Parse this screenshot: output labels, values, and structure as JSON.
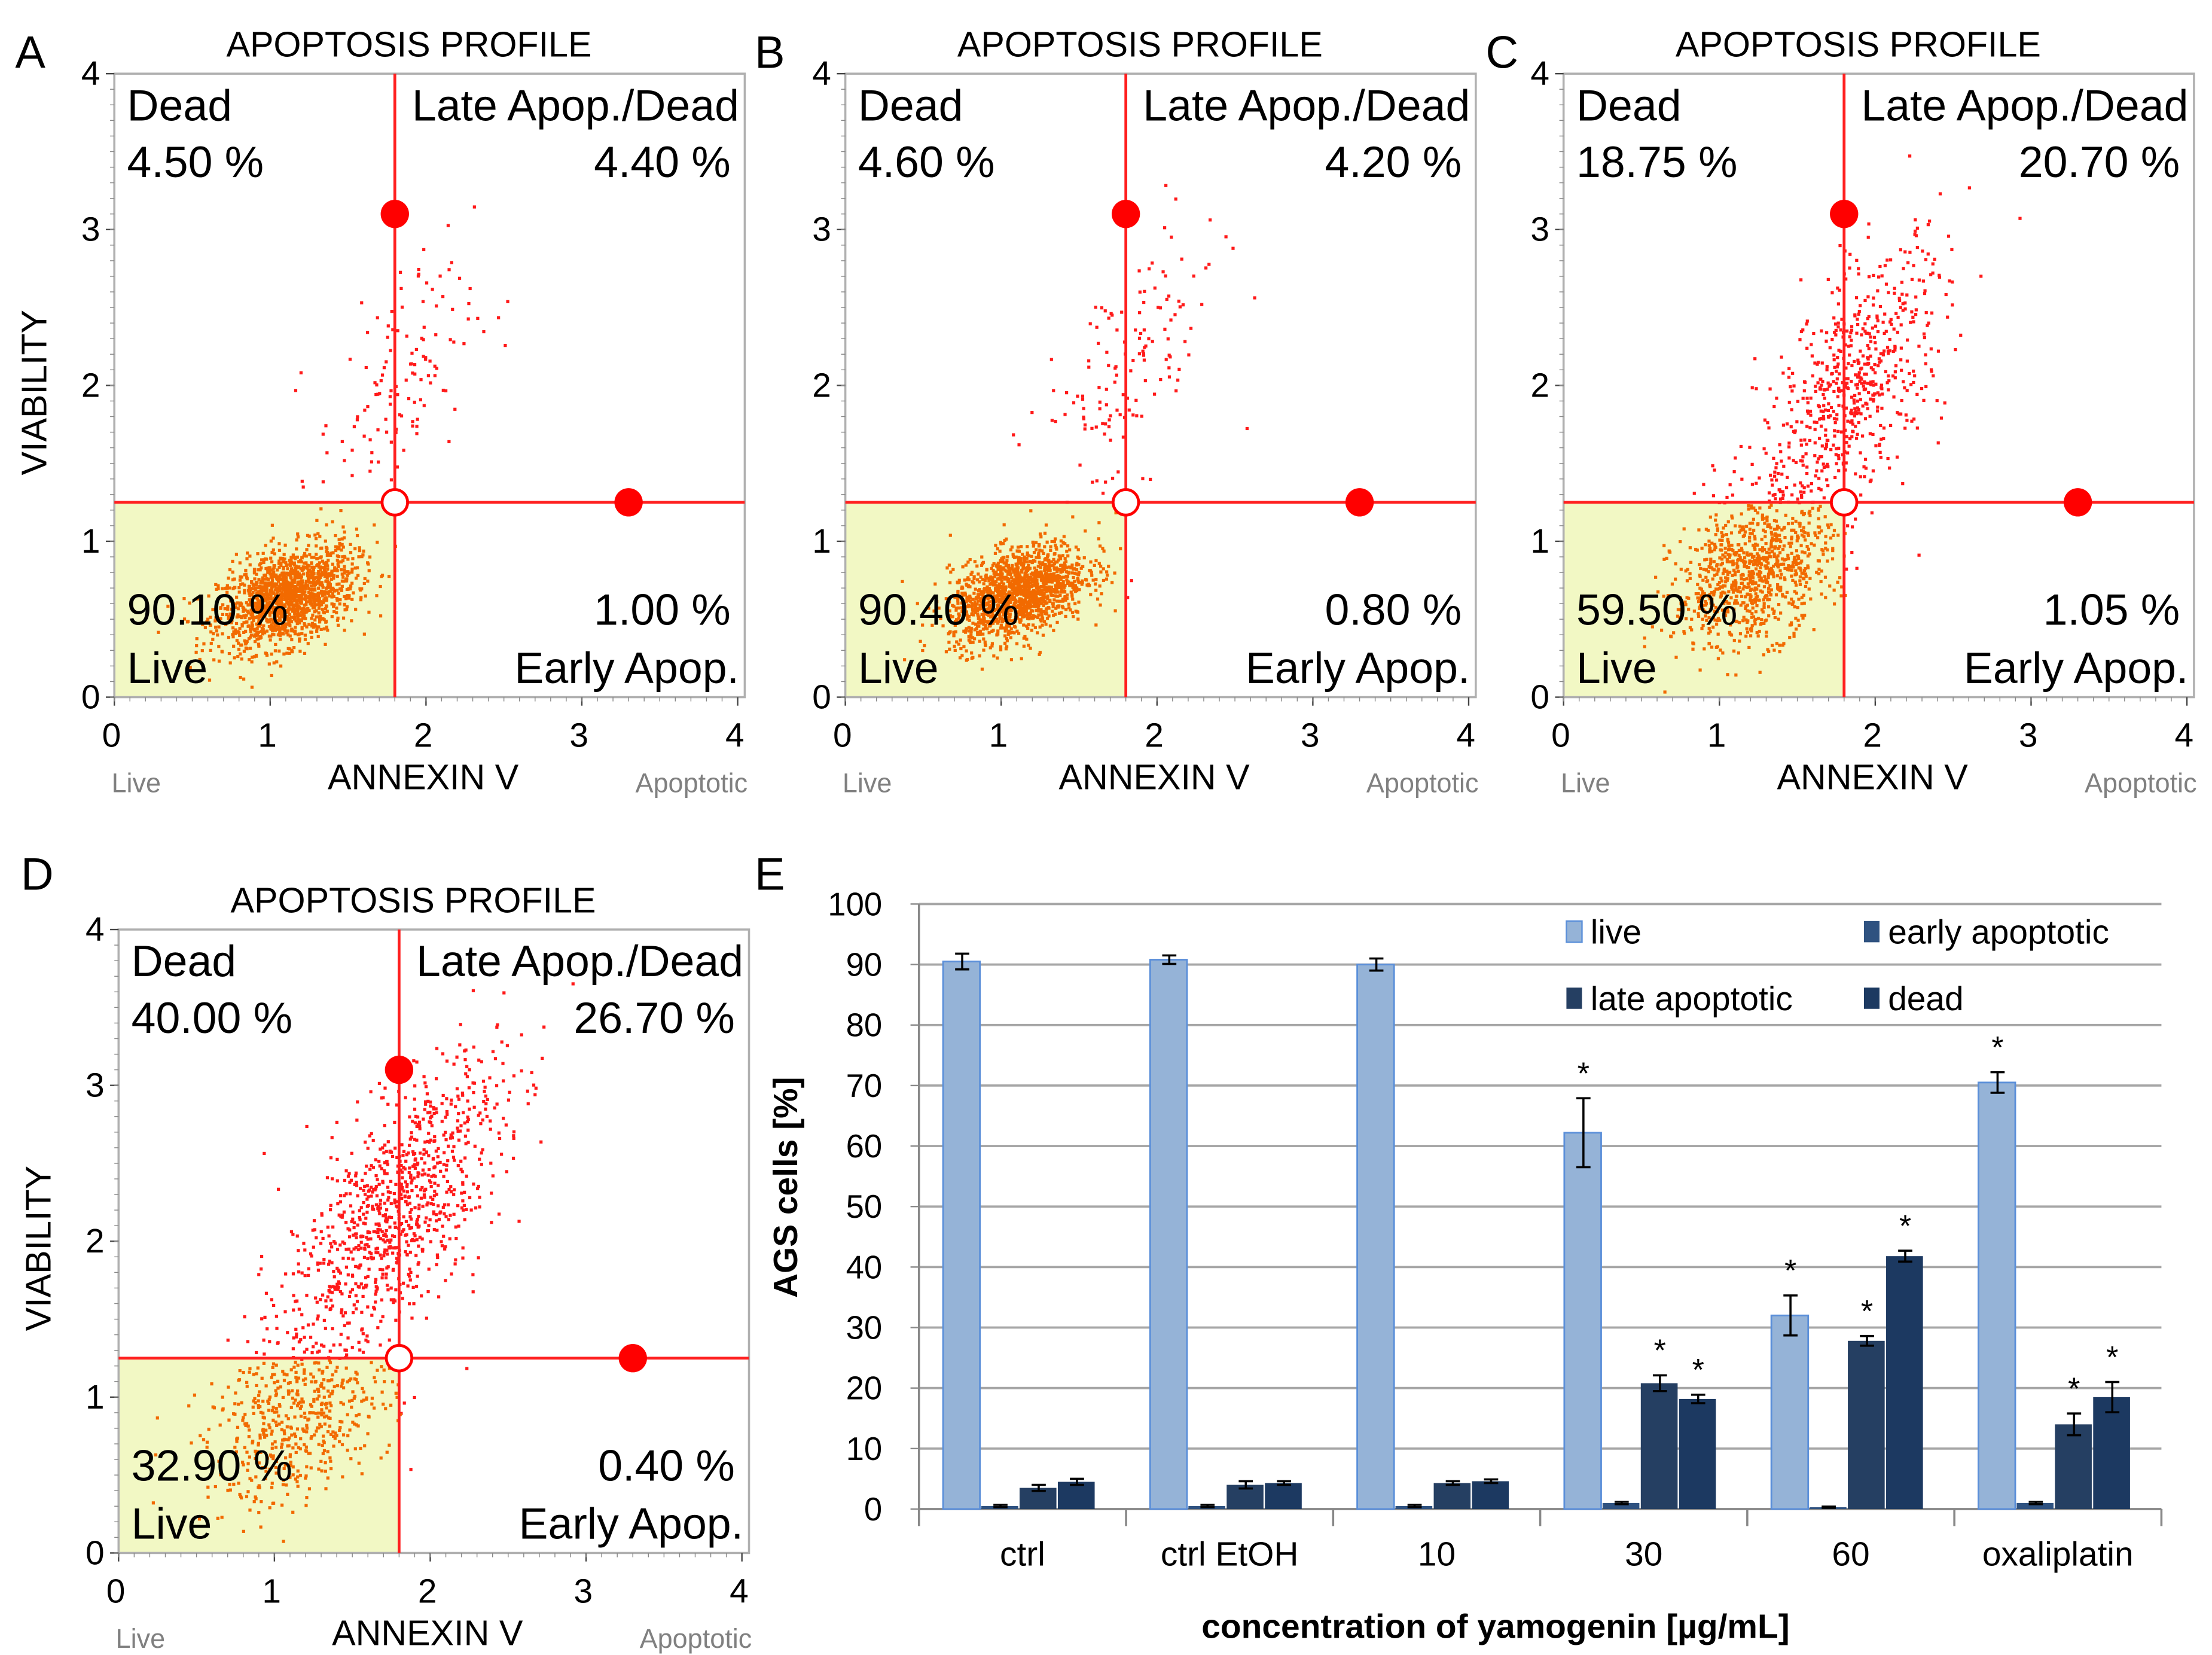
{
  "chart_data": [
    {
      "type": "scatter",
      "panel": "A",
      "title": "APOPTOSIS PROFILE",
      "xlabel": "ANNEXIN V",
      "ylabel": "VIABILITY",
      "x_left_label": "Live",
      "x_right_label": "Apoptotic",
      "xlim": [
        0,
        4
      ],
      "ylim": [
        0,
        4
      ],
      "xticks": [
        "0",
        "1",
        "2",
        "3",
        "4"
      ],
      "yticks": [
        "0",
        "1",
        "2",
        "3",
        "4"
      ],
      "gate": {
        "x": 1.8,
        "y": 1.25,
        "handle_top_y": 3.1,
        "handle_right_x": 3.3
      },
      "quadrants": {
        "dead_label": "Dead",
        "dead_pct": "4.50 %",
        "late_label": "Late Apop./Dead",
        "late_pct": "4.40 %",
        "live_label": "Live",
        "live_pct": "90.10 %",
        "early_label": "Early Apop.",
        "early_pct": "1.00 %"
      },
      "clusters": [
        {
          "cx": 1.1,
          "cy": 0.65,
          "sx": 0.22,
          "sy": 0.15,
          "n": 1500
        },
        {
          "cx": 1.8,
          "cy": 2.0,
          "sx": 0.25,
          "sy": 0.35,
          "n": 130
        }
      ],
      "show_ylabel": true
    },
    {
      "type": "scatter",
      "panel": "B",
      "title": "APOPTOSIS PROFILE",
      "xlabel": "ANNEXIN V",
      "ylabel": "VIABILITY",
      "x_left_label": "Live",
      "x_right_label": "Apoptotic",
      "xlim": [
        0,
        4
      ],
      "ylim": [
        0,
        4
      ],
      "xticks": [
        "0",
        "1",
        "2",
        "3",
        "4"
      ],
      "yticks": [
        "0",
        "1",
        "2",
        "3",
        "4"
      ],
      "gate": {
        "x": 1.8,
        "y": 1.25,
        "handle_top_y": 3.1,
        "handle_right_x": 3.3
      },
      "quadrants": {
        "dead_label": "Dead",
        "dead_pct": "4.60 %",
        "late_label": "Late Apop./Dead",
        "late_pct": "4.20 %",
        "live_label": "Live",
        "live_pct": "90.40 %",
        "early_label": "Early Apop.",
        "early_pct": "0.80 %"
      },
      "clusters": [
        {
          "cx": 1.1,
          "cy": 0.68,
          "sx": 0.22,
          "sy": 0.14,
          "n": 1500
        },
        {
          "cx": 1.8,
          "cy": 2.1,
          "sx": 0.3,
          "sy": 0.35,
          "n": 140
        }
      ],
      "show_ylabel": false
    },
    {
      "type": "scatter",
      "panel": "C",
      "title": "APOPTOSIS PROFILE",
      "xlabel": "ANNEXIN V",
      "ylabel": "VIABILITY",
      "x_left_label": "Live",
      "x_right_label": "Apoptotic",
      "xlim": [
        0,
        4
      ],
      "ylim": [
        0,
        4
      ],
      "xticks": [
        "0",
        "1",
        "2",
        "3",
        "4"
      ],
      "yticks": [
        "0",
        "1",
        "2",
        "3",
        "4"
      ],
      "gate": {
        "x": 1.8,
        "y": 1.25,
        "handle_top_y": 3.1,
        "handle_right_x": 3.3
      },
      "quadrants": {
        "dead_label": "Dead",
        "dead_pct": "18.75 %",
        "late_label": "Late Apop./Dead",
        "late_pct": "20.70 %",
        "live_label": "Live",
        "live_pct": "59.50 %",
        "early_label": "Early Apop.",
        "early_pct": "1.05 %"
      },
      "clusters": [
        {
          "cx": 1.2,
          "cy": 0.8,
          "sx": 0.25,
          "sy": 0.22,
          "n": 900
        },
        {
          "cx": 1.85,
          "cy": 2.0,
          "sx": 0.3,
          "sy": 0.35,
          "n": 650
        }
      ],
      "show_ylabel": false
    },
    {
      "type": "scatter",
      "panel": "D",
      "title": "APOPTOSIS PROFILE",
      "xlabel": "ANNEXIN V",
      "ylabel": "VIABILITY",
      "x_left_label": "Live",
      "x_right_label": "Apoptotic",
      "xlim": [
        0,
        4
      ],
      "ylim": [
        0,
        4
      ],
      "xticks": [
        "0",
        "1",
        "2",
        "3",
        "4"
      ],
      "yticks": [
        "0",
        "1",
        "2",
        "3",
        "4"
      ],
      "gate": {
        "x": 1.8,
        "y": 1.25,
        "handle_top_y": 3.1,
        "handle_right_x": 3.3
      },
      "quadrants": {
        "dead_label": "Dead",
        "dead_pct": "40.00 %",
        "late_label": "Late Apop./Dead",
        "late_pct": "26.70 %",
        "live_label": "Live",
        "live_pct": "32.90 %",
        "early_label": "Early Apop.",
        "early_pct": "0.40 %"
      },
      "clusters": [
        {
          "cx": 1.15,
          "cy": 0.85,
          "sx": 0.3,
          "sy": 0.25,
          "n": 500
        },
        {
          "cx": 1.75,
          "cy": 2.2,
          "sx": 0.35,
          "sy": 0.35,
          "n": 950
        }
      ],
      "show_ylabel": true
    },
    {
      "type": "bar",
      "panel": "E",
      "categories": [
        "ctrl",
        "ctrl EtOH",
        "10",
        "30",
        "60",
        "oxaliplatin"
      ],
      "xlabel": "concentration of yamogenin [µg/mL]",
      "ylabel": "AGS cells [%]",
      "ylim": [
        0,
        100
      ],
      "yticks": [
        "0",
        "10",
        "20",
        "30",
        "40",
        "50",
        "60",
        "70",
        "80",
        "90",
        "100"
      ],
      "grid": true,
      "legend_placement": "top-right",
      "significance_marker": "*",
      "series": [
        {
          "name": "live",
          "color": "#95b3d7",
          "values": [
            90.5,
            90.8,
            90.0,
            62.2,
            32.0,
            70.5
          ],
          "errors": [
            1.3,
            0.7,
            1.0,
            5.7,
            3.3,
            1.7
          ],
          "significant": [
            false,
            false,
            false,
            true,
            true,
            true
          ]
        },
        {
          "name": "early apoptotic",
          "color": "#2f5280",
          "values": [
            0.5,
            0.5,
            0.5,
            1.0,
            0.3,
            1.0
          ],
          "errors": [
            0.2,
            0.2,
            0.2,
            0.2,
            0.1,
            0.2
          ],
          "significant": [
            false,
            false,
            false,
            false,
            false,
            false
          ]
        },
        {
          "name": "late apoptotic",
          "color": "#253f62",
          "values": [
            3.5,
            4.0,
            4.3,
            20.8,
            27.8,
            14.0
          ],
          "errors": [
            0.5,
            0.6,
            0.3,
            1.3,
            0.8,
            1.8
          ],
          "significant": [
            false,
            false,
            false,
            true,
            true,
            true
          ]
        },
        {
          "name": "dead",
          "color": "#1c3961",
          "values": [
            4.5,
            4.3,
            4.6,
            18.2,
            41.8,
            18.5
          ],
          "errors": [
            0.5,
            0.3,
            0.3,
            0.7,
            0.9,
            2.5
          ],
          "significant": [
            false,
            false,
            false,
            true,
            true,
            true
          ]
        }
      ]
    }
  ]
}
